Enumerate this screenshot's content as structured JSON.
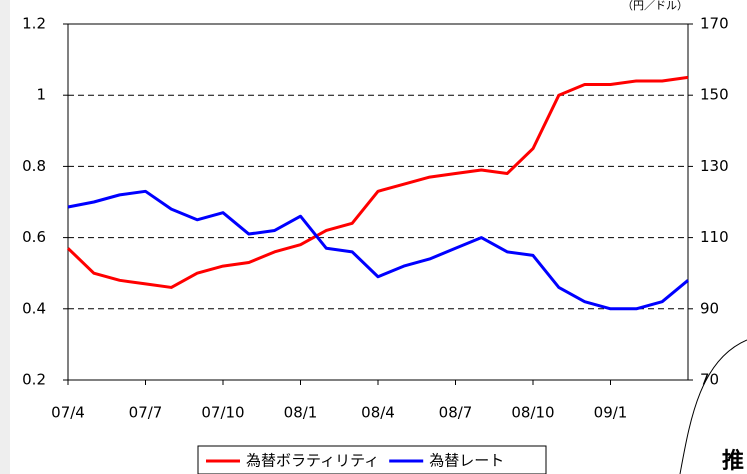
{
  "chart_data": {
    "type": "line",
    "y2_label": "（円／ドル）",
    "categories": [
      "07/4",
      null,
      null,
      "07/7",
      null,
      null,
      "07/10",
      null,
      null,
      "08/1",
      null,
      null,
      "08/4",
      null,
      null,
      "08/7",
      null,
      null,
      "08/10",
      null,
      null,
      "09/1",
      null,
      null,
      null
    ],
    "series": [
      {
        "name": "為替ボラティリティ",
        "color": "#ff0000",
        "values": [
          0.57,
          0.5,
          0.48,
          0.47,
          0.46,
          0.5,
          0.52,
          0.53,
          0.56,
          0.58,
          0.62,
          0.64,
          0.73,
          0.75,
          0.77,
          0.78,
          0.79,
          0.78,
          0.85,
          1.0,
          1.03,
          1.03,
          1.04,
          1.04,
          1.05
        ]
      },
      {
        "name": "為替レート",
        "color": "#0000ff",
        "axis": "y2",
        "values": [
          118.6,
          120,
          122,
          123,
          118,
          115,
          117,
          111,
          112,
          116,
          107,
          106,
          99,
          102,
          104,
          107,
          110,
          106,
          105,
          96,
          92,
          90,
          90,
          92,
          98
        ]
      }
    ],
    "ylim": [
      0.2,
      1.2
    ],
    "yticks": [
      0.2,
      0.4,
      0.6,
      0.8,
      {
        "value": 1.0,
        "label": "1"
      },
      1.2
    ],
    "y2lim": [
      70,
      170
    ],
    "y2ticks": [
      70,
      90,
      110,
      130,
      150,
      170
    ],
    "grid": true,
    "legend": "bottom",
    "annotation": "推"
  }
}
